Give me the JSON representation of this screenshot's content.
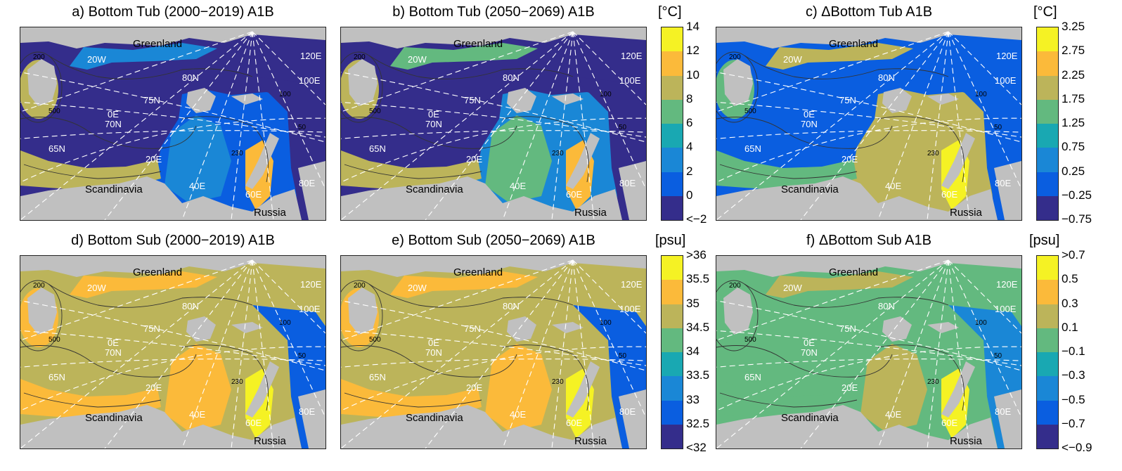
{
  "panels": [
    {
      "id": "a",
      "title": "a) Bottom Tub (2000−2019) A1B",
      "scale": "temp",
      "variant": "tempNow"
    },
    {
      "id": "b",
      "title": "b) Bottom Tub (2050−2069) A1B",
      "scale": "temp",
      "variant": "tempFut"
    },
    {
      "id": "c",
      "title": "c) ΔBottom Tub A1B",
      "scale": "dtemp",
      "variant": "dtemp"
    },
    {
      "id": "d",
      "title": "d) Bottom Sub (2000−2019) A1B",
      "scale": "sal",
      "variant": "salNow"
    },
    {
      "id": "e",
      "title": "e) Bottom Sub (2050−2069) A1B",
      "scale": "sal",
      "variant": "salFut"
    },
    {
      "id": "f",
      "title": "f) ΔBottom Sub A1B",
      "scale": "dsal",
      "variant": "dsal"
    }
  ],
  "map_labels": {
    "regions": [
      "Greenland",
      "Scandinavia",
      "Russia"
    ],
    "longitudes": [
      "20W",
      "0E",
      "20E",
      "40E",
      "60E",
      "80E",
      "100E",
      "120E"
    ],
    "latitudes": [
      "65N",
      "70N",
      "75N",
      "80N"
    ],
    "contours": [
      "200",
      "500",
      "50",
      "100",
      "230"
    ]
  },
  "colorbars": {
    "temp": {
      "unit": "[°C]",
      "ticks": [
        "14",
        "12",
        "10",
        "8",
        "6",
        "4",
        "2",
        "0",
        "<−2"
      ],
      "colors": [
        "#f5f224",
        "#fbba3a",
        "#bcb45a",
        "#63b97f",
        "#19a8b2",
        "#1a87d6",
        "#0a5ee0",
        "#342d8b"
      ]
    },
    "dtemp": {
      "unit": "[°C]",
      "ticks": [
        "3.25",
        "2.75",
        "2.25",
        "1.75",
        "1.25",
        "0.75",
        "0.25",
        "−0.25",
        "−0.75"
      ],
      "colors": [
        "#f5f224",
        "#fbba3a",
        "#bcb45a",
        "#63b97f",
        "#19a8b2",
        "#1a87d6",
        "#0a5ee0",
        "#342d8b"
      ]
    },
    "sal": {
      "unit": "[psu]",
      "ticks": [
        ">36",
        "35.5",
        "35",
        "34.5",
        "34",
        "33.5",
        "33",
        "32.5",
        "<32"
      ],
      "colors": [
        "#f5f224",
        "#fbba3a",
        "#bcb45a",
        "#63b97f",
        "#19a8b2",
        "#1a87d6",
        "#0a5ee0",
        "#342d8b"
      ]
    },
    "dsal": {
      "unit": "[psu]",
      "ticks": [
        ">0.7",
        "0.5",
        "0.3",
        "0.1",
        "−0.1",
        "−0.3",
        "−0.5",
        "−0.7",
        "<−0.9"
      ],
      "colors": [
        "#f5f224",
        "#fbba3a",
        "#bcb45a",
        "#63b97f",
        "#19a8b2",
        "#1a87d6",
        "#0a5ee0",
        "#342d8b"
      ]
    }
  },
  "colors": {
    "land": "#c0c0c0",
    "grid": "#ffffff",
    "contour": "#333333"
  }
}
